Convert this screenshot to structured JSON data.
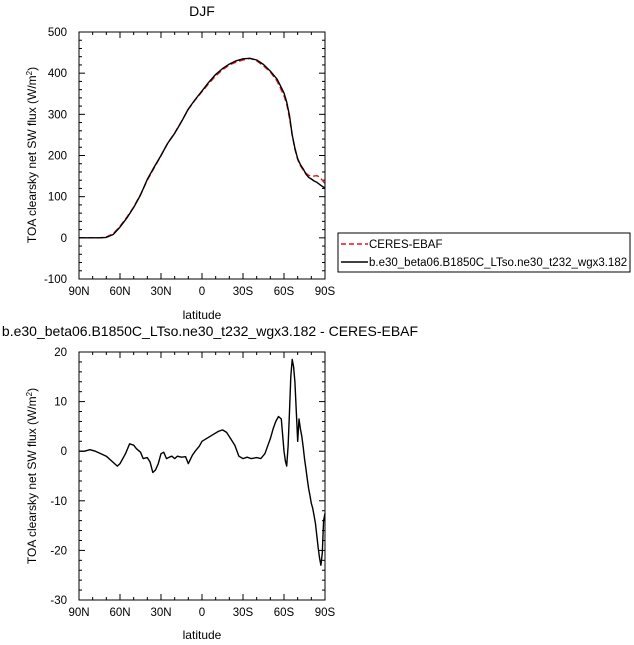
{
  "colors": {
    "ceres": "#e0141e",
    "model": "#000000"
  },
  "chart_data": [
    {
      "type": "line",
      "title": "DJF",
      "xlabel": "latitude",
      "ylabel": "TOA clearsky net SW flux (W/m²)",
      "ylabel_main": "TOA clearsky net SW flux (W/m",
      "ylabel_sup": "2",
      "ylabel_end": ")",
      "xlim": [
        -90,
        90
      ],
      "ylim": [
        -100,
        500
      ],
      "xticks": [
        -90,
        -60,
        -30,
        0,
        30,
        60,
        90
      ],
      "xtick_labels": [
        "90N",
        "60N",
        "30N",
        "0",
        "30S",
        "60S",
        "90S"
      ],
      "yticks": [
        -100,
        0,
        100,
        200,
        300,
        400,
        500
      ],
      "ytick_labels": [
        "-100",
        "0",
        "100",
        "200",
        "300",
        "400",
        "500"
      ],
      "legend_position": "right",
      "series": [
        {
          "name": "CERES-EBAF",
          "style": "dashed",
          "color": "#e0141e",
          "x": [
            -90,
            -85,
            -80,
            -75,
            -70,
            -65,
            -60,
            -55,
            -50,
            -45,
            -40,
            -35,
            -30,
            -25,
            -20,
            -15,
            -10,
            -5,
            0,
            5,
            10,
            15,
            20,
            25,
            30,
            35,
            40,
            45,
            50,
            55,
            60,
            62,
            64,
            66,
            68,
            70,
            72,
            74,
            76,
            78,
            80,
            82,
            84,
            86,
            88,
            90
          ],
          "y": [
            0,
            0,
            0,
            0,
            2,
            10,
            28,
            50,
            75,
            105,
            140,
            170,
            200,
            230,
            255,
            283,
            312,
            335,
            355,
            375,
            393,
            408,
            420,
            427,
            432,
            436,
            430,
            418,
            403,
            380,
            345,
            325,
            290,
            250,
            215,
            190,
            175,
            165,
            157,
            152,
            150,
            150,
            151,
            148,
            140,
            132
          ]
        },
        {
          "name": "b.e30_beta06.B1850C_LTso.ne30_t232_wgx3.182",
          "style": "solid",
          "color": "#000000",
          "x": [
            -90,
            -85,
            -80,
            -75,
            -70,
            -65,
            -60,
            -55,
            -50,
            -45,
            -40,
            -35,
            -30,
            -25,
            -20,
            -15,
            -10,
            -5,
            0,
            5,
            10,
            15,
            20,
            25,
            30,
            35,
            40,
            45,
            50,
            55,
            60,
            62,
            64,
            66,
            68,
            70,
            72,
            74,
            76,
            78,
            80,
            82,
            84,
            86,
            88,
            90
          ],
          "y": [
            0,
            0,
            0,
            0,
            1,
            8,
            26,
            48,
            74,
            104,
            142,
            172,
            200,
            230,
            254,
            282,
            313,
            336,
            357,
            378,
            397,
            411,
            422,
            430,
            435,
            436,
            432,
            421,
            405,
            385,
            352,
            330,
            297,
            250,
            218,
            192,
            178,
            168,
            155,
            147,
            143,
            138,
            135,
            130,
            125,
            121
          ]
        }
      ]
    },
    {
      "type": "line",
      "title": "b.e30_beta06.B1850C_LTso.ne30_t232_wgx3.182 - CERES-EBAF",
      "xlabel": "latitude",
      "ylabel": "TOA clearsky net SW flux (W/m²)",
      "ylabel_main": "TOA clearsky net SW flux (W/m",
      "ylabel_sup": "2",
      "ylabel_end": ")",
      "xlim": [
        -90,
        90
      ],
      "ylim": [
        -30,
        20
      ],
      "xticks": [
        -90,
        -60,
        -30,
        0,
        30,
        60,
        90
      ],
      "xtick_labels": [
        "90N",
        "60N",
        "30N",
        "0",
        "30S",
        "60S",
        "90S"
      ],
      "yticks": [
        -30,
        -20,
        -10,
        0,
        10,
        20
      ],
      "ytick_labels": [
        "-30",
        "-20",
        "-10",
        "0",
        "10",
        "20"
      ],
      "series": [
        {
          "style": "solid",
          "color": "#000000",
          "x": [
            -90,
            -86,
            -82,
            -78,
            -74,
            -70,
            -66,
            -62,
            -60,
            -56,
            -53,
            -50,
            -48,
            -45,
            -43,
            -40,
            -38,
            -36,
            -34,
            -32,
            -30,
            -28,
            -26,
            -24,
            -22,
            -20,
            -18,
            -15,
            -12,
            -10,
            -7,
            -5,
            -2,
            0,
            3,
            6,
            9,
            12,
            15,
            18,
            21,
            24,
            27,
            30,
            33,
            36,
            40,
            43,
            46,
            48,
            50,
            52,
            54,
            56,
            58,
            60,
            61,
            62,
            63,
            64,
            65,
            66,
            67,
            68,
            69,
            70,
            71,
            72,
            73,
            74,
            75,
            76,
            77,
            78,
            79,
            80,
            81,
            82,
            83,
            84,
            85,
            86,
            87,
            88,
            89,
            90
          ],
          "y": [
            0,
            0,
            0.3,
            0,
            -0.5,
            -1,
            -2,
            -3,
            -2.5,
            -0.5,
            1.5,
            1.2,
            0.5,
            -0.2,
            -1.5,
            -1.3,
            -2.2,
            -4.3,
            -3.8,
            -2.5,
            -0.5,
            -0.2,
            -1.5,
            -1.2,
            -1.0,
            -1.5,
            -1.0,
            -1.2,
            -1.1,
            -2.5,
            -0.8,
            0,
            1,
            2,
            2.5,
            3,
            3.5,
            4,
            4.3,
            3.8,
            2.5,
            1.2,
            -1,
            -1.5,
            -1.2,
            -1.5,
            -1.3,
            -1.5,
            -0.5,
            1,
            2.5,
            4.5,
            6,
            7,
            6.5,
            0,
            -2,
            -3,
            1,
            8,
            15,
            18.5,
            17,
            14,
            8,
            2,
            6.5,
            4.5,
            3,
            1,
            -1.5,
            -3.5,
            -5.5,
            -7.5,
            -9,
            -10.5,
            -11.5,
            -13,
            -14.5,
            -17,
            -19.5,
            -21.5,
            -23,
            -20.5,
            -14,
            -12.5
          ]
        }
      ]
    }
  ]
}
